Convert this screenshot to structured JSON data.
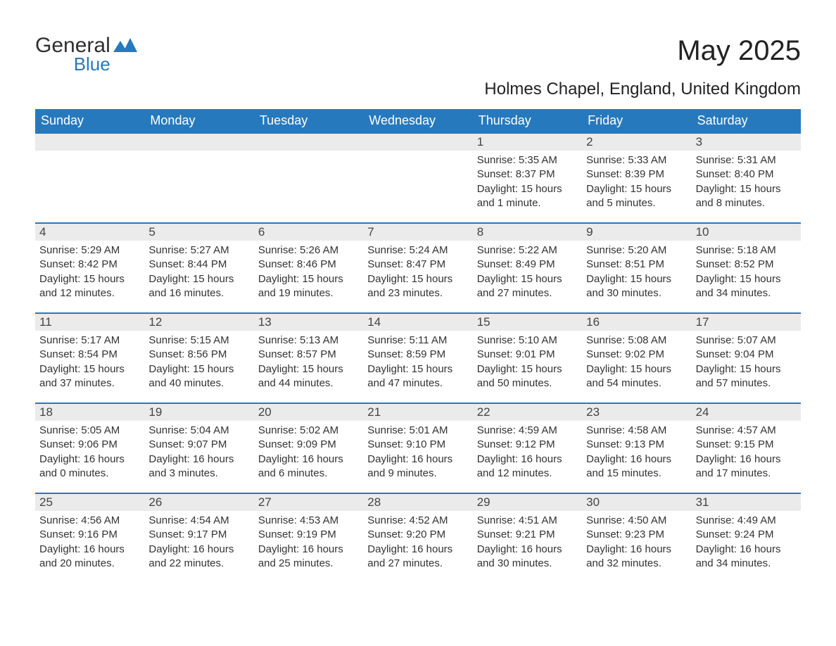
{
  "logo": {
    "line1": "General",
    "line2": "Blue"
  },
  "title": "May 2025",
  "subtitle": "Holmes Chapel, England, United Kingdom",
  "colors": {
    "header_bg": "#2779bd",
    "header_text": "#ffffff",
    "daynum_bg": "#ebebeb",
    "border": "#2779bd",
    "body_text": "#333333",
    "logo_blue": "#2779bd"
  },
  "dayHeaders": [
    "Sunday",
    "Monday",
    "Tuesday",
    "Wednesday",
    "Thursday",
    "Friday",
    "Saturday"
  ],
  "weeks": [
    [
      null,
      null,
      null,
      null,
      {
        "n": "1",
        "sr": "5:35 AM",
        "ss": "8:37 PM",
        "dl": "15 hours and 1 minute."
      },
      {
        "n": "2",
        "sr": "5:33 AM",
        "ss": "8:39 PM",
        "dl": "15 hours and 5 minutes."
      },
      {
        "n": "3",
        "sr": "5:31 AM",
        "ss": "8:40 PM",
        "dl": "15 hours and 8 minutes."
      }
    ],
    [
      {
        "n": "4",
        "sr": "5:29 AM",
        "ss": "8:42 PM",
        "dl": "15 hours and 12 minutes."
      },
      {
        "n": "5",
        "sr": "5:27 AM",
        "ss": "8:44 PM",
        "dl": "15 hours and 16 minutes."
      },
      {
        "n": "6",
        "sr": "5:26 AM",
        "ss": "8:46 PM",
        "dl": "15 hours and 19 minutes."
      },
      {
        "n": "7",
        "sr": "5:24 AM",
        "ss": "8:47 PM",
        "dl": "15 hours and 23 minutes."
      },
      {
        "n": "8",
        "sr": "5:22 AM",
        "ss": "8:49 PM",
        "dl": "15 hours and 27 minutes."
      },
      {
        "n": "9",
        "sr": "5:20 AM",
        "ss": "8:51 PM",
        "dl": "15 hours and 30 minutes."
      },
      {
        "n": "10",
        "sr": "5:18 AM",
        "ss": "8:52 PM",
        "dl": "15 hours and 34 minutes."
      }
    ],
    [
      {
        "n": "11",
        "sr": "5:17 AM",
        "ss": "8:54 PM",
        "dl": "15 hours and 37 minutes."
      },
      {
        "n": "12",
        "sr": "5:15 AM",
        "ss": "8:56 PM",
        "dl": "15 hours and 40 minutes."
      },
      {
        "n": "13",
        "sr": "5:13 AM",
        "ss": "8:57 PM",
        "dl": "15 hours and 44 minutes."
      },
      {
        "n": "14",
        "sr": "5:11 AM",
        "ss": "8:59 PM",
        "dl": "15 hours and 47 minutes."
      },
      {
        "n": "15",
        "sr": "5:10 AM",
        "ss": "9:01 PM",
        "dl": "15 hours and 50 minutes."
      },
      {
        "n": "16",
        "sr": "5:08 AM",
        "ss": "9:02 PM",
        "dl": "15 hours and 54 minutes."
      },
      {
        "n": "17",
        "sr": "5:07 AM",
        "ss": "9:04 PM",
        "dl": "15 hours and 57 minutes."
      }
    ],
    [
      {
        "n": "18",
        "sr": "5:05 AM",
        "ss": "9:06 PM",
        "dl": "16 hours and 0 minutes."
      },
      {
        "n": "19",
        "sr": "5:04 AM",
        "ss": "9:07 PM",
        "dl": "16 hours and 3 minutes."
      },
      {
        "n": "20",
        "sr": "5:02 AM",
        "ss": "9:09 PM",
        "dl": "16 hours and 6 minutes."
      },
      {
        "n": "21",
        "sr": "5:01 AM",
        "ss": "9:10 PM",
        "dl": "16 hours and 9 minutes."
      },
      {
        "n": "22",
        "sr": "4:59 AM",
        "ss": "9:12 PM",
        "dl": "16 hours and 12 minutes."
      },
      {
        "n": "23",
        "sr": "4:58 AM",
        "ss": "9:13 PM",
        "dl": "16 hours and 15 minutes."
      },
      {
        "n": "24",
        "sr": "4:57 AM",
        "ss": "9:15 PM",
        "dl": "16 hours and 17 minutes."
      }
    ],
    [
      {
        "n": "25",
        "sr": "4:56 AM",
        "ss": "9:16 PM",
        "dl": "16 hours and 20 minutes."
      },
      {
        "n": "26",
        "sr": "4:54 AM",
        "ss": "9:17 PM",
        "dl": "16 hours and 22 minutes."
      },
      {
        "n": "27",
        "sr": "4:53 AM",
        "ss": "9:19 PM",
        "dl": "16 hours and 25 minutes."
      },
      {
        "n": "28",
        "sr": "4:52 AM",
        "ss": "9:20 PM",
        "dl": "16 hours and 27 minutes."
      },
      {
        "n": "29",
        "sr": "4:51 AM",
        "ss": "9:21 PM",
        "dl": "16 hours and 30 minutes."
      },
      {
        "n": "30",
        "sr": "4:50 AM",
        "ss": "9:23 PM",
        "dl": "16 hours and 32 minutes."
      },
      {
        "n": "31",
        "sr": "4:49 AM",
        "ss": "9:24 PM",
        "dl": "16 hours and 34 minutes."
      }
    ]
  ],
  "labels": {
    "sunrise": "Sunrise: ",
    "sunset": "Sunset: ",
    "daylight": "Daylight: "
  }
}
